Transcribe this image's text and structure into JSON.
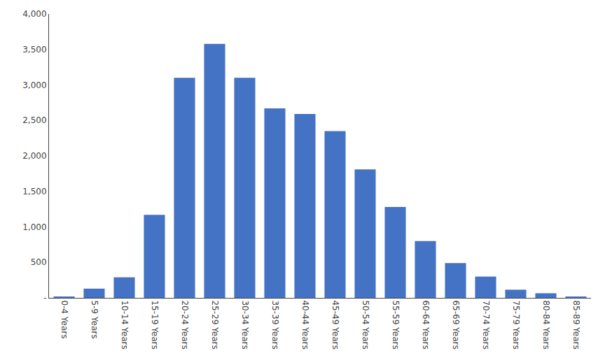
{
  "chart_data": {
    "type": "bar",
    "categories": [
      "0-4 Years",
      "5-9 Years",
      "10-14 Years",
      "15-19 Years",
      "20-24 Years",
      "25-29 Years",
      "30-34 Years",
      "35-39 Years",
      "40-44 Years",
      "45-49 Years",
      "50-54 Years",
      "55-59 Years",
      "60-64 Years",
      "65-69 Years",
      "70-74 Years",
      "75-79 Years",
      "80-84 Years",
      "85-89 Years"
    ],
    "values": [
      20,
      130,
      290,
      1170,
      3100,
      3580,
      3100,
      2670,
      2590,
      2350,
      1810,
      1280,
      800,
      490,
      300,
      115,
      65,
      15
    ],
    "color": "#4472c4",
    "ylim": [
      0,
      4000
    ],
    "yticks": [
      {
        "value": 0,
        "label": "-"
      },
      500,
      {
        "value": 1000,
        "label": "1,000"
      },
      {
        "value": 1500,
        "label": "1,500"
      },
      {
        "value": 2000,
        "label": "2,000"
      },
      {
        "value": 2500,
        "label": "2,500"
      },
      {
        "value": 3000,
        "label": "3,000"
      },
      {
        "value": 3500,
        "label": "3,500"
      },
      {
        "value": 4000,
        "label": "4,000"
      }
    ],
    "grid": false
  }
}
